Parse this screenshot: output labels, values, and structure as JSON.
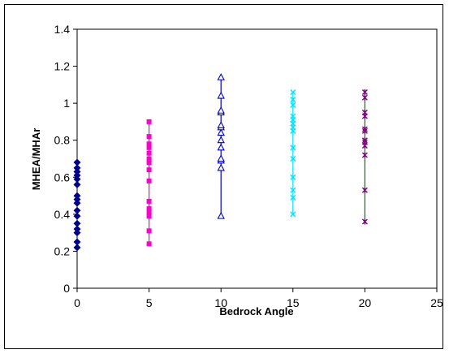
{
  "chart_data": {
    "type": "scatter",
    "title": "",
    "xlabel": "Bedrock Angle",
    "ylabel": "MHEA/MHAr",
    "xlim": [
      0,
      25
    ],
    "ylim": [
      0,
      1.4
    ],
    "xticks": [
      "0",
      "5",
      "10",
      "15",
      "20",
      "25"
    ],
    "yticks": [
      "0",
      "0.2",
      "0.4",
      "0.6",
      "0.8",
      "1",
      "1.2",
      "1.4"
    ],
    "grid": false,
    "legend": "none",
    "series": [
      {
        "x": 0,
        "color": "#00008B",
        "marker": "diamond",
        "line": false,
        "values": [
          0.22,
          0.25,
          0.3,
          0.32,
          0.35,
          0.39,
          0.42,
          0.46,
          0.48,
          0.5,
          0.56,
          0.59,
          0.61,
          0.63,
          0.65,
          0.68
        ]
      },
      {
        "x": 5,
        "color": "#FF00CC",
        "marker": "square",
        "line": true,
        "values": [
          0.24,
          0.31,
          0.39,
          0.41,
          0.43,
          0.47,
          0.58,
          0.64,
          0.68,
          0.7,
          0.73,
          0.76,
          0.78,
          0.82,
          0.9
        ]
      },
      {
        "x": 10,
        "color": "#0000CC",
        "marker": "triangle",
        "line": true,
        "values": [
          0.39,
          0.65,
          0.69,
          0.7,
          0.76,
          0.8,
          0.84,
          0.87,
          0.88,
          0.95,
          0.96,
          1.04,
          1.14
        ]
      },
      {
        "x": 15,
        "color": "#00E5FF",
        "marker": "x",
        "line": true,
        "values": [
          0.4,
          0.49,
          0.53,
          0.6,
          0.7,
          0.76,
          0.85,
          0.87,
          0.89,
          0.91,
          0.93,
          0.99,
          1.02,
          1.06
        ]
      },
      {
        "x": 20,
        "color": "#800080",
        "marker": "star",
        "line": true,
        "line_color": "#008000",
        "values": [
          0.36,
          0.53,
          0.72,
          0.77,
          0.79,
          0.8,
          0.85,
          0.86,
          0.93,
          0.95,
          1.03,
          1.06
        ]
      }
    ]
  }
}
